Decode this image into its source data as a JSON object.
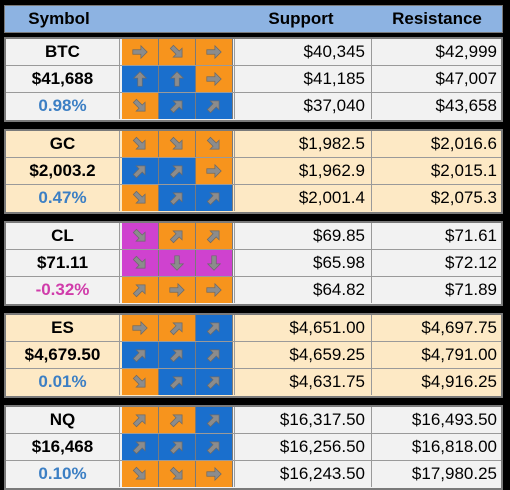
{
  "header": {
    "symbol": "Symbol",
    "support": "Support",
    "resistance": "Resistance"
  },
  "colors": {
    "orange": "#f7941d",
    "blue": "#1a6fcd",
    "magenta": "#cf42cf",
    "header_bg": "#8db3e2",
    "tan_row": "#fde9c5",
    "gray_row": "#f2f2f2",
    "positive_text": "#3c7fc4",
    "negative_text": "#d03caa"
  },
  "groups": [
    {
      "ticker": "BTC",
      "price": "$41,688",
      "change": "0.98%",
      "change_sign": "pos",
      "bg": "gray",
      "rows": [
        {
          "arrows": [
            [
              "right",
              "orange"
            ],
            [
              "down-right",
              "orange"
            ],
            [
              "right",
              "orange"
            ]
          ],
          "support": "$40,345",
          "resistance": "$42,999"
        },
        {
          "arrows": [
            [
              "up",
              "blue"
            ],
            [
              "up",
              "blue"
            ],
            [
              "right",
              "orange"
            ]
          ],
          "support": "$41,185",
          "resistance": "$47,007"
        },
        {
          "arrows": [
            [
              "down-right",
              "orange"
            ],
            [
              "up-right",
              "blue"
            ],
            [
              "up-right",
              "blue"
            ]
          ],
          "support": "$37,040",
          "resistance": "$43,658"
        }
      ]
    },
    {
      "ticker": "GC",
      "price": "$2,003.2",
      "change": "0.47%",
      "change_sign": "pos",
      "bg": "tan",
      "rows": [
        {
          "arrows": [
            [
              "down-right",
              "orange"
            ],
            [
              "down-right",
              "orange"
            ],
            [
              "down-right",
              "orange"
            ]
          ],
          "support": "$1,982.5",
          "resistance": "$2,016.6"
        },
        {
          "arrows": [
            [
              "up-right",
              "blue"
            ],
            [
              "up-right",
              "blue"
            ],
            [
              "right",
              "orange"
            ]
          ],
          "support": "$1,962.9",
          "resistance": "$2,015.1"
        },
        {
          "arrows": [
            [
              "down-right",
              "orange"
            ],
            [
              "up-right",
              "blue"
            ],
            [
              "up-right",
              "blue"
            ]
          ],
          "support": "$2,001.4",
          "resistance": "$2,075.3"
        }
      ]
    },
    {
      "ticker": "CL",
      "price": "$71.11",
      "change": "-0.32%",
      "change_sign": "neg",
      "bg": "gray",
      "rows": [
        {
          "arrows": [
            [
              "down-right",
              "magenta"
            ],
            [
              "up-right",
              "orange"
            ],
            [
              "up-right",
              "orange"
            ]
          ],
          "support": "$69.85",
          "resistance": "$71.61"
        },
        {
          "arrows": [
            [
              "down-right",
              "magenta"
            ],
            [
              "down",
              "magenta"
            ],
            [
              "down",
              "magenta"
            ]
          ],
          "support": "$65.98",
          "resistance": "$72.12"
        },
        {
          "arrows": [
            [
              "up-right",
              "orange"
            ],
            [
              "right",
              "orange"
            ],
            [
              "right",
              "orange"
            ]
          ],
          "support": "$64.82",
          "resistance": "$71.89"
        }
      ]
    },
    {
      "ticker": "ES",
      "price": "$4,679.50",
      "change": "0.01%",
      "change_sign": "pos",
      "bg": "tan",
      "rows": [
        {
          "arrows": [
            [
              "right",
              "orange"
            ],
            [
              "up-right",
              "orange"
            ],
            [
              "up-right",
              "blue"
            ]
          ],
          "support": "$4,651.00",
          "resistance": "$4,697.75"
        },
        {
          "arrows": [
            [
              "up-right",
              "blue"
            ],
            [
              "up-right",
              "blue"
            ],
            [
              "up-right",
              "blue"
            ]
          ],
          "support": "$4,659.25",
          "resistance": "$4,791.00"
        },
        {
          "arrows": [
            [
              "down-right",
              "orange"
            ],
            [
              "up-right",
              "blue"
            ],
            [
              "up-right",
              "blue"
            ]
          ],
          "support": "$4,631.75",
          "resistance": "$4,916.25"
        }
      ]
    },
    {
      "ticker": "NQ",
      "price": "$16,468",
      "change": "0.10%",
      "change_sign": "pos",
      "bg": "gray",
      "rows": [
        {
          "arrows": [
            [
              "up-right",
              "orange"
            ],
            [
              "up-right",
              "orange"
            ],
            [
              "up-right",
              "blue"
            ]
          ],
          "support": "$16,317.50",
          "resistance": "$16,493.50"
        },
        {
          "arrows": [
            [
              "up-right",
              "blue"
            ],
            [
              "up-right",
              "blue"
            ],
            [
              "up-right",
              "blue"
            ]
          ],
          "support": "$16,256.50",
          "resistance": "$16,818.00"
        },
        {
          "arrows": [
            [
              "down-right",
              "orange"
            ],
            [
              "down-right",
              "orange"
            ],
            [
              "right",
              "orange"
            ]
          ],
          "support": "$16,243.50",
          "resistance": "$17,980.25"
        }
      ]
    }
  ]
}
